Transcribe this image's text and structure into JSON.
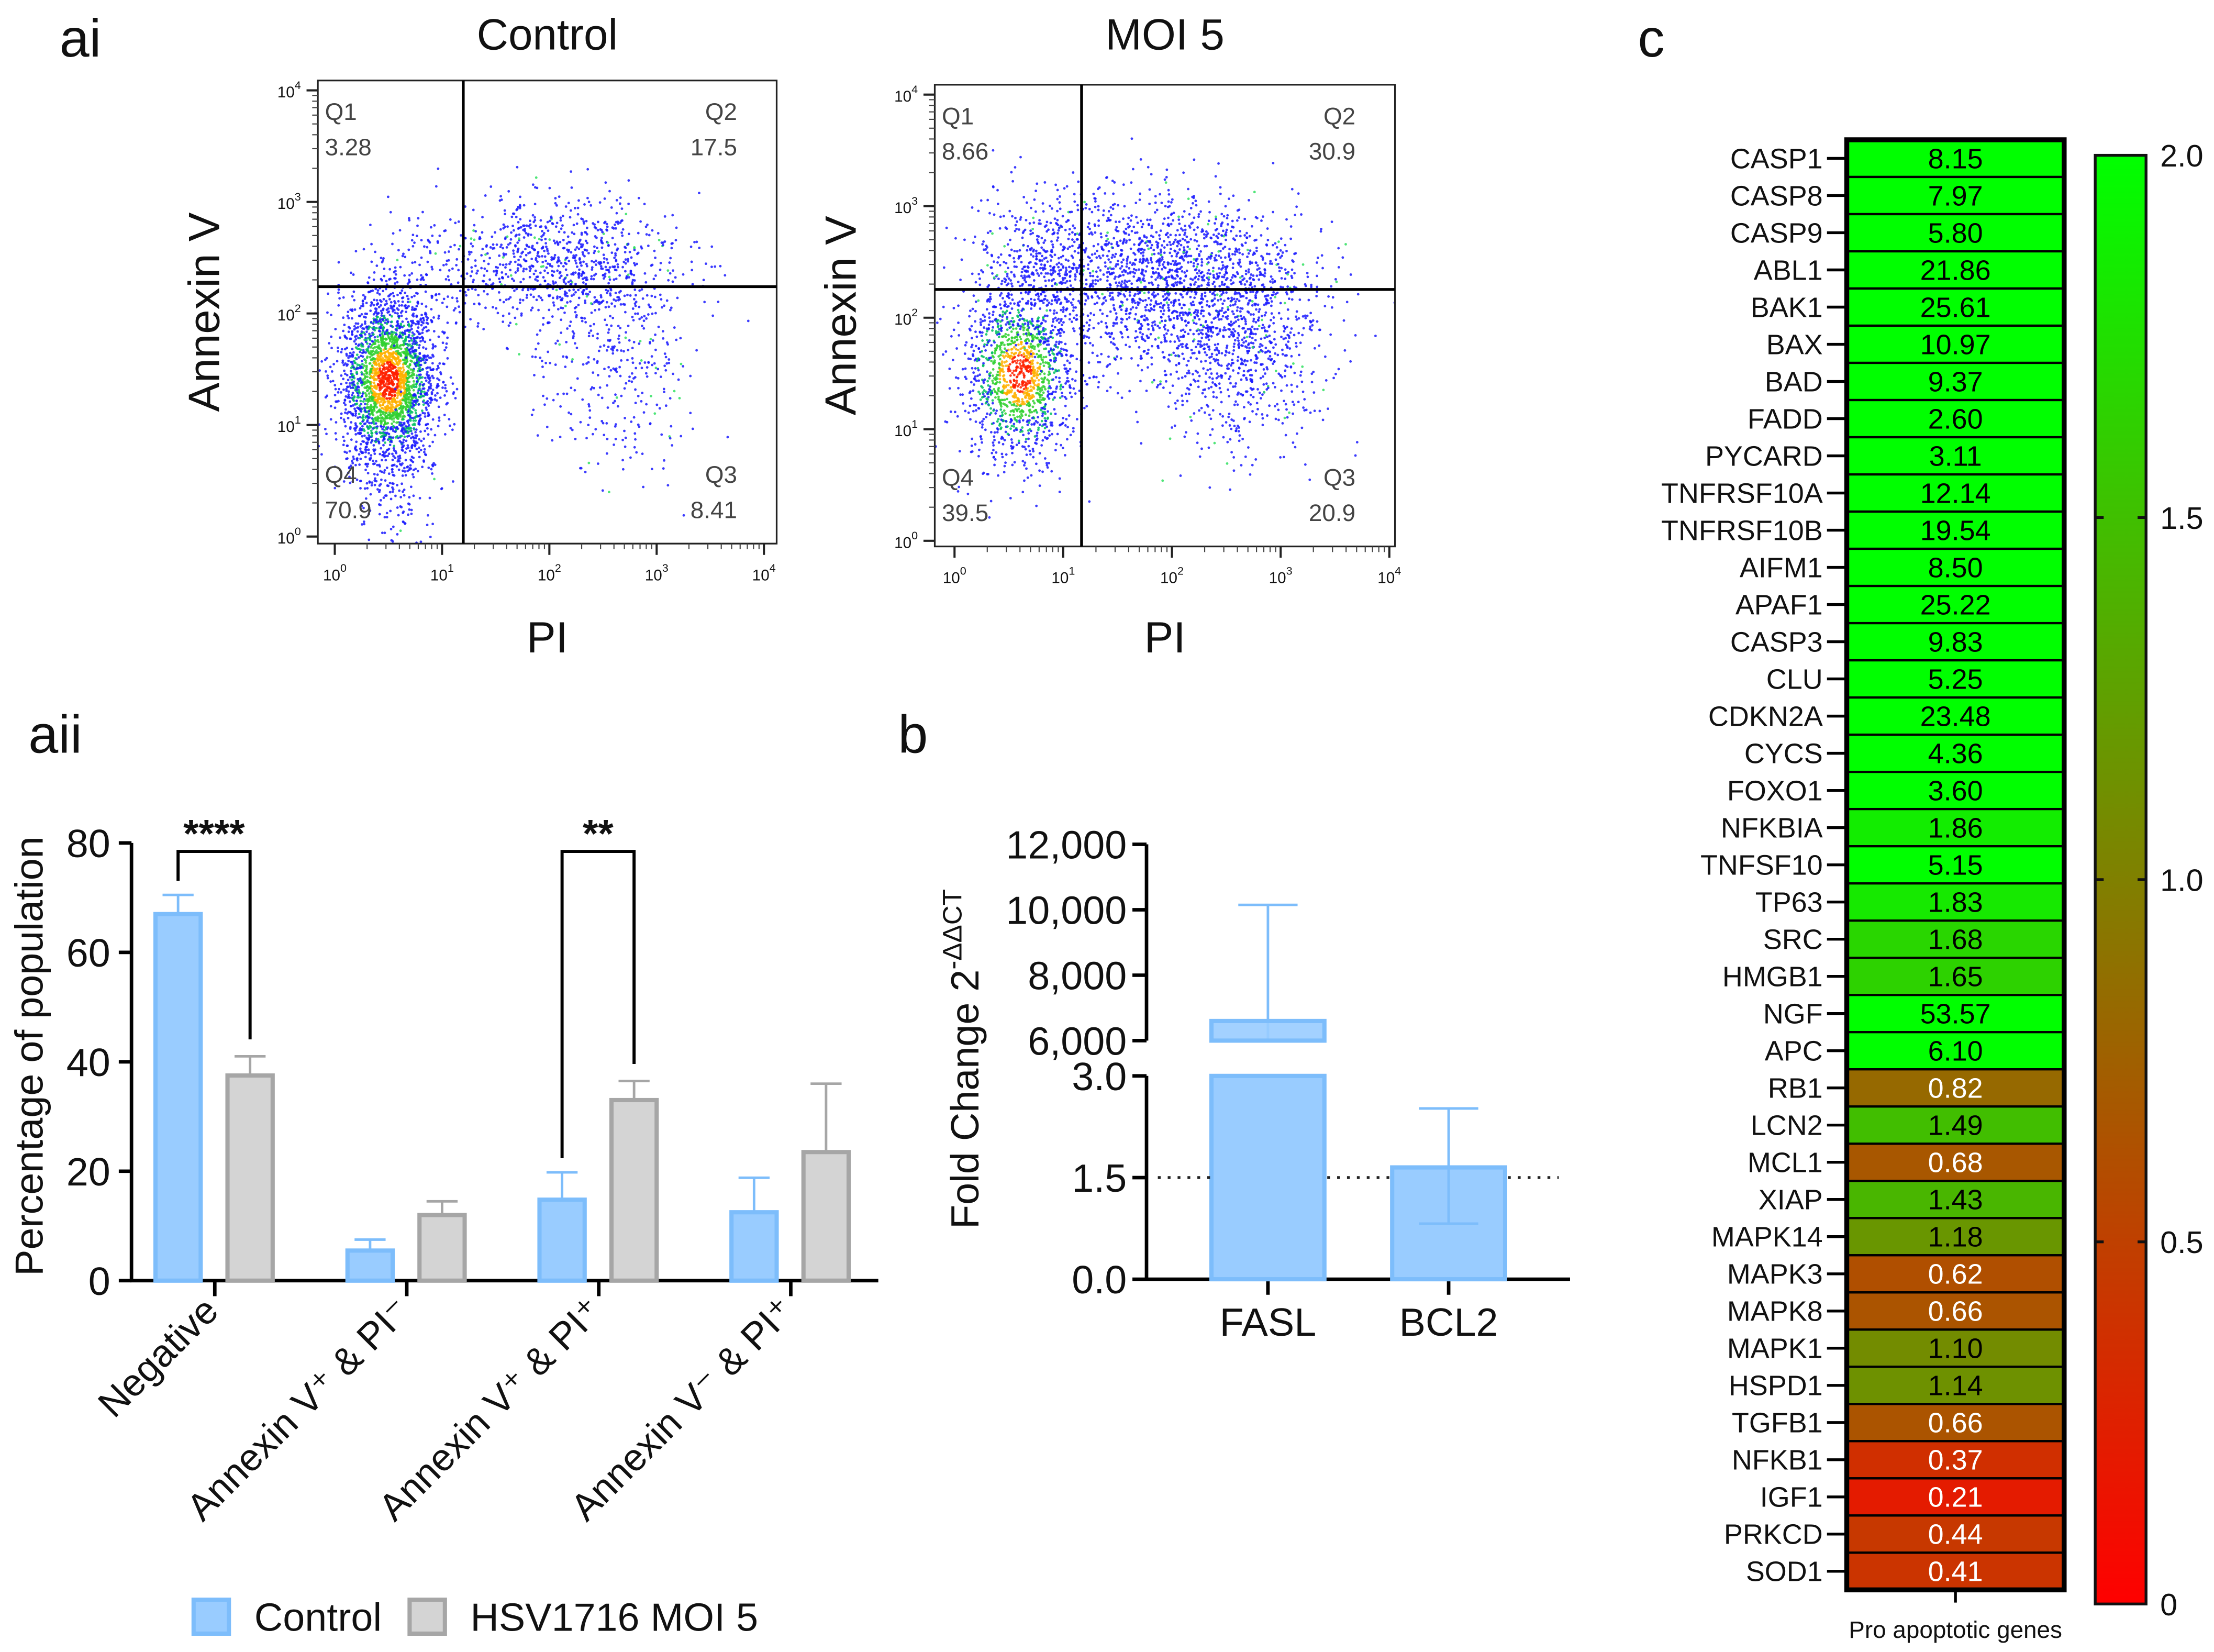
{
  "panel_labels": {
    "ai": "ai",
    "aii": "aii",
    "b": "b",
    "c": "c"
  },
  "chart_data": [
    {
      "type": "scatter",
      "panel": "ai",
      "title": "Control",
      "xlabel": "PI",
      "ylabel": "Annexin V",
      "axis_scale": "log",
      "tick_base": "10",
      "tick_exponents": [
        "0",
        "1",
        "2",
        "3",
        "4"
      ],
      "quadrants": [
        {
          "name": "Q1",
          "value": "3.28"
        },
        {
          "name": "Q2",
          "value": "17.5"
        },
        {
          "name": "Q3",
          "value": "8.41"
        },
        {
          "name": "Q4",
          "value": "70.9"
        }
      ]
    },
    {
      "type": "scatter",
      "panel": "ai",
      "title": "MOI 5",
      "xlabel": "PI",
      "ylabel": "Annexin V",
      "axis_scale": "log",
      "tick_base": "10",
      "tick_exponents": [
        "0",
        "1",
        "2",
        "3",
        "4"
      ],
      "quadrants": [
        {
          "name": "Q1",
          "value": "8.66"
        },
        {
          "name": "Q2",
          "value": "30.9"
        },
        {
          "name": "Q3",
          "value": "20.9"
        },
        {
          "name": "Q4",
          "value": "39.5"
        }
      ]
    },
    {
      "type": "bar",
      "panel": "aii",
      "ylabel": "Percentage of population",
      "ylim": [
        0,
        80
      ],
      "yticks": [
        "0",
        "20",
        "40",
        "60",
        "80"
      ],
      "categories": [
        "Negative",
        "Annexin V⁺ & PI⁻",
        "Annexin V⁺ & PI⁺",
        "Annexin V⁻ & PI⁺"
      ],
      "series": [
        {
          "name": "Control",
          "color": "#99ccff",
          "edge": "#7dbdfb",
          "values": [
            67,
            5.5,
            14.8,
            12.5
          ],
          "errors_upper": [
            70.5,
            7.5,
            19.8,
            18.8
          ]
        },
        {
          "name": "HSV1716 MOI 5",
          "color": "#d4d4d4",
          "edge": "#a6a6a6",
          "values": [
            37.5,
            12,
            33,
            23.5
          ],
          "errors_upper": [
            41,
            14.5,
            36.5,
            36
          ]
        }
      ],
      "significance": [
        {
          "category_index": 0,
          "label": "****"
        },
        {
          "category_index": 2,
          "label": "**"
        }
      ],
      "legend": "bottom"
    },
    {
      "type": "bar",
      "panel": "b",
      "ylabel": "Fold Change 2",
      "ylabel_superscript": "-ΔΔCT",
      "axis_break": {
        "lower": [
          0,
          3
        ],
        "upper": [
          6000,
          12000
        ]
      },
      "yticks_lower": [
        "0.0",
        "1.5",
        "3.0"
      ],
      "yticks_upper": [
        "6,000",
        "8,000",
        "10,000",
        "12,000"
      ],
      "categories": [
        "FASL",
        "BCL2"
      ],
      "values": [
        6600,
        1.65
      ],
      "errors_upper": [
        10150,
        2.52
      ],
      "errors_lower": [
        null,
        0.82
      ],
      "reference_line": 1.5,
      "color": "#99ccff",
      "edge": "#7dbdfb"
    },
    {
      "type": "heatmap",
      "panel": "c",
      "xlabel": "Pro apoptotic genes",
      "colorbar": {
        "min": 0,
        "max": 2,
        "ticks": [
          "0",
          "0.5",
          "1.0",
          "1.5",
          "2.0"
        ],
        "low_color": "#ff0000",
        "mid_color": "#808000",
        "high_color": "#00ff00"
      },
      "genes": [
        "CASP1",
        "CASP8",
        "CASP9",
        "ABL1",
        "BAK1",
        "BAX",
        "BAD",
        "FADD",
        "PYCARD",
        "TNFRSF10A",
        "TNFRSF10B",
        "AIFM1",
        "APAF1",
        "CASP3",
        "CLU",
        "CDKN2A",
        "CYCS",
        "FOXO1",
        "NFKBIA",
        "TNFSF10",
        "TP63",
        "SRC",
        "HMGB1",
        "NGF",
        "APC",
        "RB1",
        "LCN2",
        "MCL1",
        "XIAP",
        "MAPK14",
        "MAPK3",
        "MAPK8",
        "MAPK1",
        "HSPD1",
        "TGFB1",
        "NFKB1",
        "IGF1",
        "PRKCD",
        "SOD1"
      ],
      "values": [
        "8.15",
        "7.97",
        "5.80",
        "21.86",
        "25.61",
        "10.97",
        "9.37",
        "2.60",
        "3.11",
        "12.14",
        "19.54",
        "8.50",
        "25.22",
        "9.83",
        "5.25",
        "23.48",
        "4.36",
        "3.60",
        "1.86",
        "5.15",
        "1.83",
        "1.68",
        "1.65",
        "53.57",
        "6.10",
        "0.82",
        "1.49",
        "0.68",
        "1.43",
        "1.18",
        "0.62",
        "0.66",
        "1.10",
        "1.14",
        "0.66",
        "0.37",
        "0.21",
        "0.44",
        "0.41"
      ]
    }
  ]
}
